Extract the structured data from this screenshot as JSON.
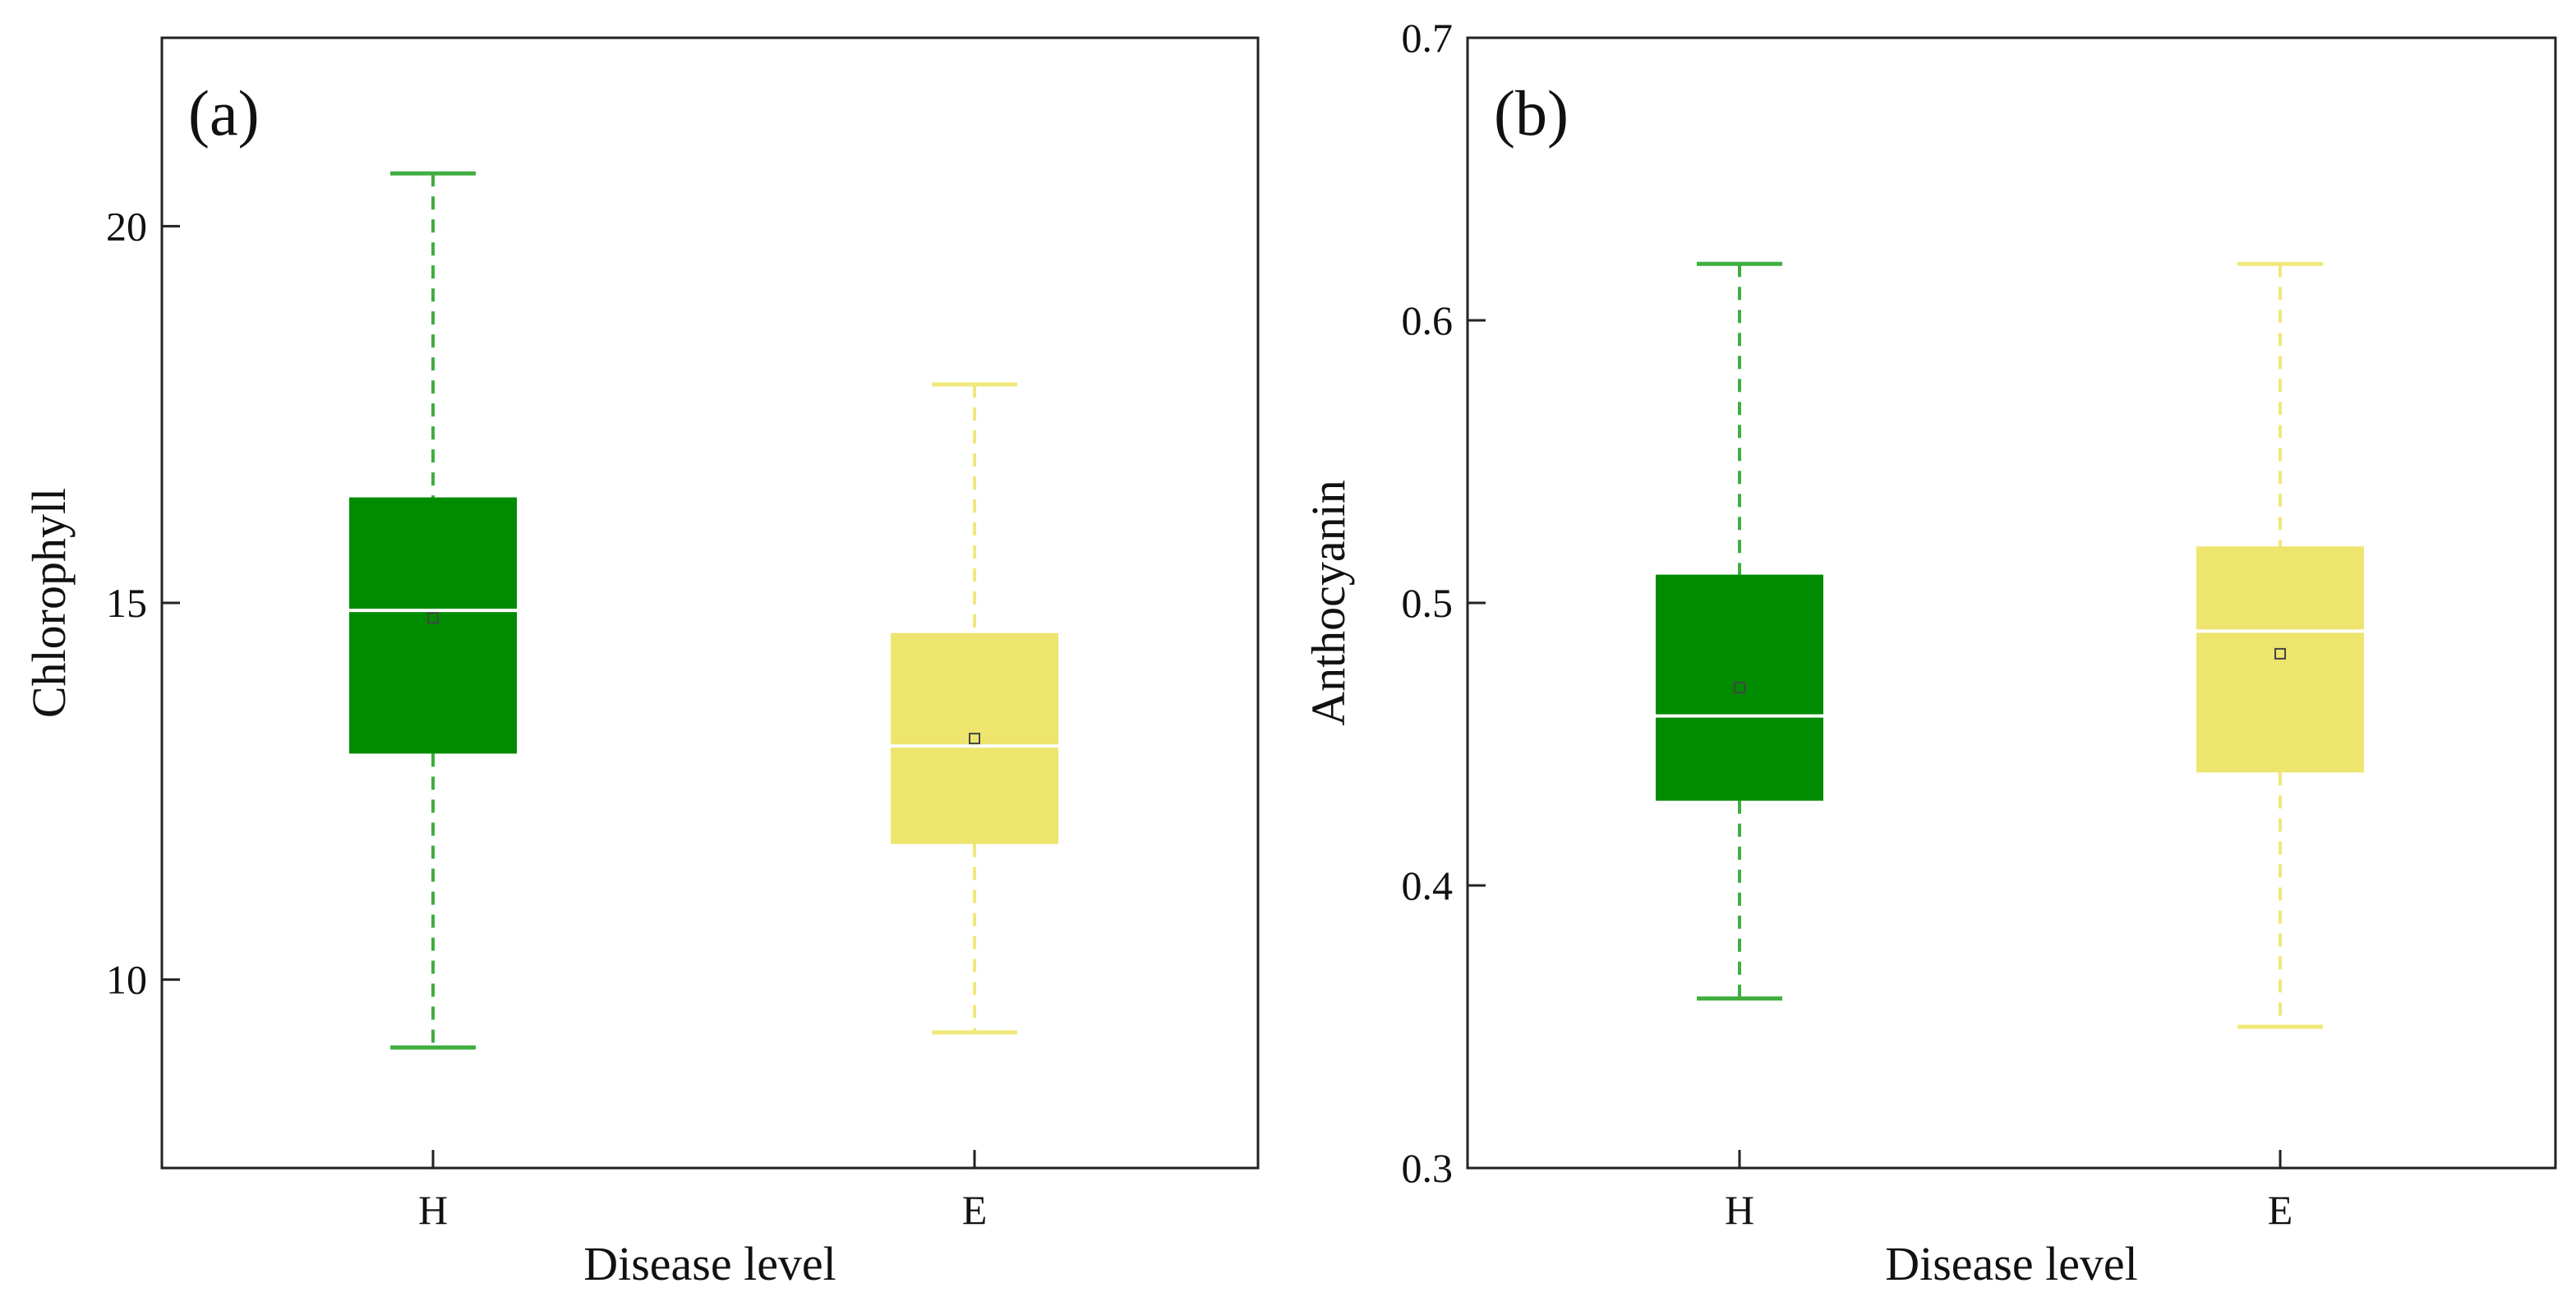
{
  "colors": {
    "healthy": "#008c00",
    "healthy_whisker": "#3fae3f",
    "exposed": "#ede56d",
    "exposed_whisker": "#f0e87a",
    "median_line": "#ffffff",
    "axis": "#222222"
  },
  "chart_data": [
    {
      "type": "box",
      "panel_label": "(a)",
      "xlabel": "Disease level",
      "ylabel": "Chlorophyll",
      "categories": [
        "H",
        "E"
      ],
      "ylim": [
        7.5,
        22.5
      ],
      "yticks": [
        10,
        15,
        20
      ],
      "ytick_labels": [
        "10",
        "15",
        "20"
      ],
      "boxes": [
        {
          "category": "H",
          "min": 9.1,
          "q1": 13.0,
          "median": 14.9,
          "mean": 14.8,
          "q3": 16.4,
          "max": 20.7,
          "color_key": "healthy"
        },
        {
          "category": "E",
          "min": 9.3,
          "q1": 11.8,
          "median": 13.1,
          "mean": 13.2,
          "q3": 14.6,
          "max": 17.9,
          "color_key": "exposed"
        }
      ]
    },
    {
      "type": "box",
      "panel_label": "(b)",
      "xlabel": "Disease level",
      "ylabel": "Anthocyanin",
      "categories": [
        "H",
        "E"
      ],
      "ylim": [
        0.3,
        0.7
      ],
      "yticks": [
        0.3,
        0.4,
        0.5,
        0.6,
        0.7
      ],
      "ytick_labels": [
        "0.3",
        "0.4",
        "0.5",
        "0.6",
        "0.7"
      ],
      "boxes": [
        {
          "category": "H",
          "min": 0.36,
          "q1": 0.43,
          "median": 0.46,
          "mean": 0.47,
          "q3": 0.51,
          "max": 0.62,
          "color_key": "healthy"
        },
        {
          "category": "E",
          "min": 0.35,
          "q1": 0.44,
          "median": 0.49,
          "mean": 0.482,
          "q3": 0.52,
          "max": 0.62,
          "color_key": "exposed"
        }
      ]
    }
  ]
}
